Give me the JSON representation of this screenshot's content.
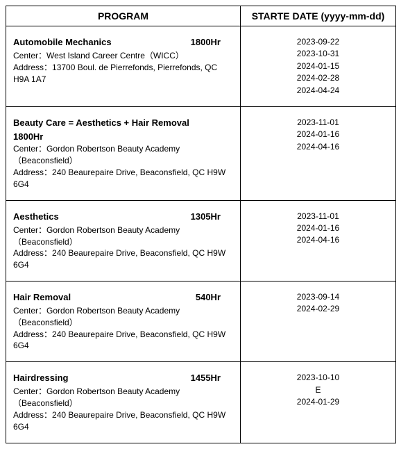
{
  "headers": {
    "program": "PROGRAM",
    "start_date": "STARTE DATE (yyyy-mm-dd)"
  },
  "rows": [
    {
      "title": "Automobile Mechanics",
      "hours": "1800Hr",
      "hours_inline": true,
      "center_label": "Center：",
      "center": "West Island Career Centre（WICC）",
      "address_label": "Address：",
      "address": "13700 Boul. de Pierrefonds, Pierrefonds, QC H9A 1A7",
      "dates": [
        "2023-09-22",
        "2023-10-31",
        "2024-01-15",
        "2024-02-28",
        "2024-04-24"
      ]
    },
    {
      "title": "Beauty Care = Aesthetics + Hair Removal",
      "hours": "1800Hr",
      "hours_inline": false,
      "center_label": "Center：",
      "center": "Gordon Robertson Beauty Academy （Beaconsfield）",
      "address_label": "Address：",
      "address": "240 Beaurepaire Drive, Beaconsfield, QC H9W 6G4",
      "dates": [
        "2023-11-01",
        "2024-01-16",
        "2024-04-16"
      ]
    },
    {
      "title": "Aesthetics",
      "hours": "1305Hr",
      "hours_inline": true,
      "center_label": "Center：",
      "center": "Gordon Robertson Beauty Academy （Beaconsfield）",
      "address_label": "Address：",
      "address": "240 Beaurepaire Drive, Beaconsfield, QC H9W 6G4",
      "dates": [
        "2023-11-01",
        "2024-01-16",
        "2024-04-16"
      ]
    },
    {
      "title": "Hair Removal",
      "hours": "540Hr",
      "hours_inline": true,
      "center_label": "Center：",
      "center": "Gordon Robertson Beauty Academy （Beaconsfield）",
      "address_label": "Address：",
      "address": "240 Beaurepaire Drive, Beaconsfield, QC H9W 6G4",
      "dates": [
        "2023-09-14",
        "2024-02-29"
      ]
    },
    {
      "title": "Hairdressing",
      "hours": "1455Hr",
      "hours_inline": true,
      "center_label": "Center：",
      "center": "Gordon Robertson Beauty Academy （Beaconsfield）",
      "address_label": "Address：",
      "address": "240 Beaurepaire Drive, Beaconsfield, QC H9W 6G4",
      "dates": [
        "2023-10-10",
        "E",
        "2024-01-29"
      ]
    }
  ]
}
